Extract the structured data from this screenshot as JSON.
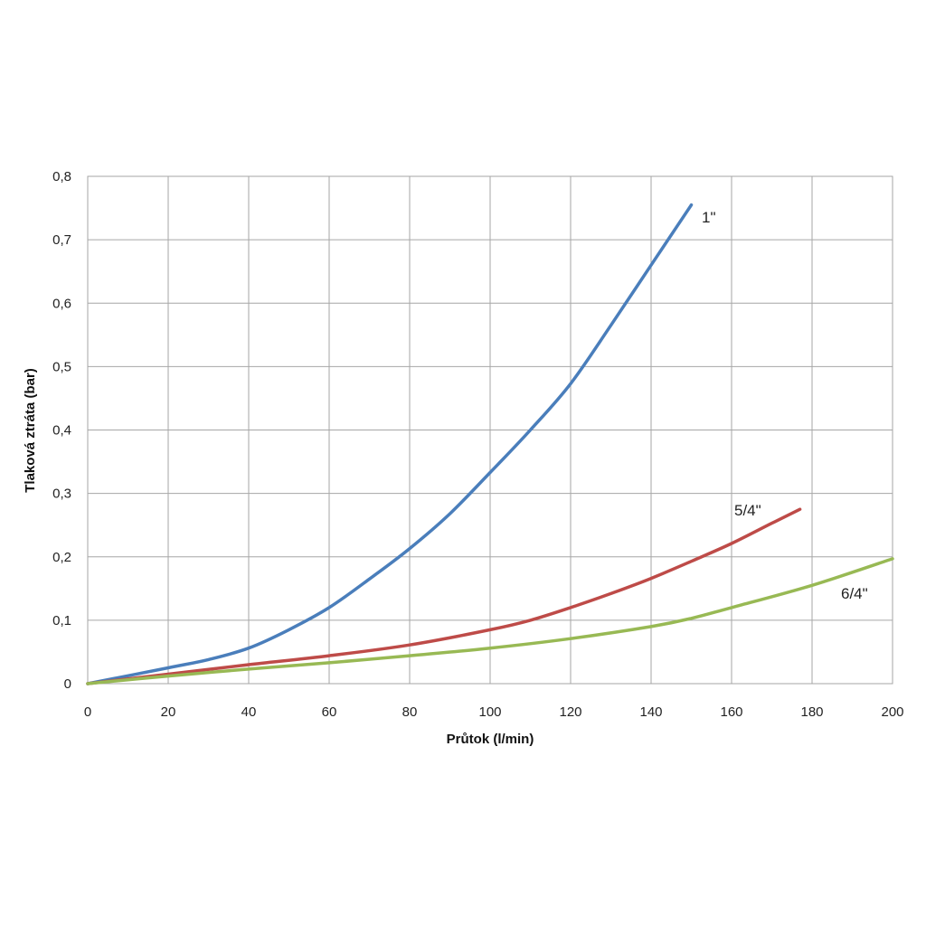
{
  "chart_data": {
    "type": "line",
    "title": "",
    "xlabel": "Průtok (l/min)",
    "ylabel": "Tlaková ztráta (bar)",
    "xlim": [
      0,
      200
    ],
    "ylim": [
      0,
      0.8
    ],
    "x_ticks": [
      0,
      20,
      40,
      60,
      80,
      100,
      120,
      140,
      160,
      180,
      200
    ],
    "x_tick_labels": [
      "0",
      "20",
      "40",
      "60",
      "80",
      "100",
      "120",
      "140",
      "160",
      "180",
      "200"
    ],
    "y_ticks": [
      0,
      0.1,
      0.2,
      0.3,
      0.4,
      0.5,
      0.6,
      0.7,
      0.8
    ],
    "y_tick_labels": [
      "0",
      "0,1",
      "0,2",
      "0,3",
      "0,4",
      "0,5",
      "0,6",
      "0,7",
      "0,8"
    ],
    "grid": true,
    "legend": "none",
    "series": [
      {
        "name": "1\"",
        "color": "#4a7ebb",
        "points": [
          [
            0,
            0
          ],
          [
            20,
            0.025
          ],
          [
            30,
            0.038
          ],
          [
            40,
            0.056
          ],
          [
            50,
            0.085
          ],
          [
            60,
            0.12
          ],
          [
            70,
            0.165
          ],
          [
            80,
            0.213
          ],
          [
            90,
            0.268
          ],
          [
            100,
            0.333
          ],
          [
            110,
            0.4
          ],
          [
            120,
            0.473
          ],
          [
            130,
            0.565
          ],
          [
            140,
            0.66
          ],
          [
            150,
            0.755
          ]
        ]
      },
      {
        "name": "5/4\"",
        "color": "#be4b48",
        "points": [
          [
            0,
            0
          ],
          [
            20,
            0.015
          ],
          [
            40,
            0.03
          ],
          [
            60,
            0.044
          ],
          [
            80,
            0.061
          ],
          [
            100,
            0.085
          ],
          [
            110,
            0.1
          ],
          [
            120,
            0.12
          ],
          [
            130,
            0.142
          ],
          [
            140,
            0.166
          ],
          [
            150,
            0.193
          ],
          [
            160,
            0.221
          ],
          [
            170,
            0.253
          ],
          [
            177,
            0.275
          ]
        ]
      },
      {
        "name": "6/4\"",
        "color": "#98b954",
        "points": [
          [
            0,
            0
          ],
          [
            20,
            0.012
          ],
          [
            40,
            0.023
          ],
          [
            60,
            0.033
          ],
          [
            80,
            0.044
          ],
          [
            100,
            0.056
          ],
          [
            120,
            0.071
          ],
          [
            140,
            0.09
          ],
          [
            150,
            0.103
          ],
          [
            160,
            0.12
          ],
          [
            180,
            0.155
          ],
          [
            200,
            0.197
          ]
        ]
      }
    ]
  }
}
